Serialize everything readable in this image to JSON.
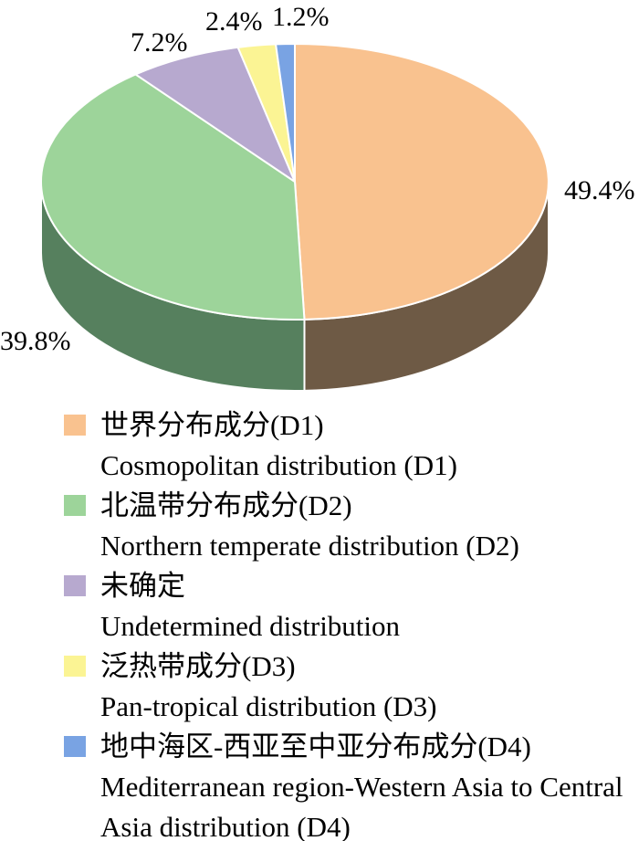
{
  "chart_data": {
    "type": "pie",
    "style": "3d",
    "title": "",
    "unit": "%",
    "start_angle_deg": 0,
    "direction": "clockwise",
    "legend_position": "bottom",
    "background": "#ffffff",
    "slices": [
      {
        "id": "D1",
        "zh": "世界分布成分(D1)",
        "en": "Cosmopolitan distribution (D1)",
        "value": 49.4,
        "label": "49.4%",
        "color": "#F9C28F",
        "side_color": "#6E5A45"
      },
      {
        "id": "D2",
        "zh": "北温带分布成分(D2)",
        "en": "Northern temperate distribution (D2)",
        "value": 39.8,
        "label": "39.8%",
        "color": "#9DD49A",
        "side_color": "#56805E"
      },
      {
        "id": "undetermined",
        "zh": "未确定",
        "en": "Undetermined distribution",
        "value": 7.2,
        "label": "7.2%",
        "color": "#B7A9CF",
        "side_color": "#6E6384"
      },
      {
        "id": "D3",
        "zh": "泛热带成分(D3)",
        "en": "Pan-tropical distribution (D3)",
        "value": 2.4,
        "label": "2.4%",
        "color": "#FBF494",
        "side_color": "#9B9245"
      },
      {
        "id": "D4",
        "zh": "地中海区-西亚至中亚分布成分(D4)",
        "en": "Mediterranean region-Western Asia to Central Asia distribution (D4)",
        "value": 1.2,
        "label": "1.2%",
        "color": "#79A3E3",
        "side_color": "#3F619B"
      }
    ]
  }
}
